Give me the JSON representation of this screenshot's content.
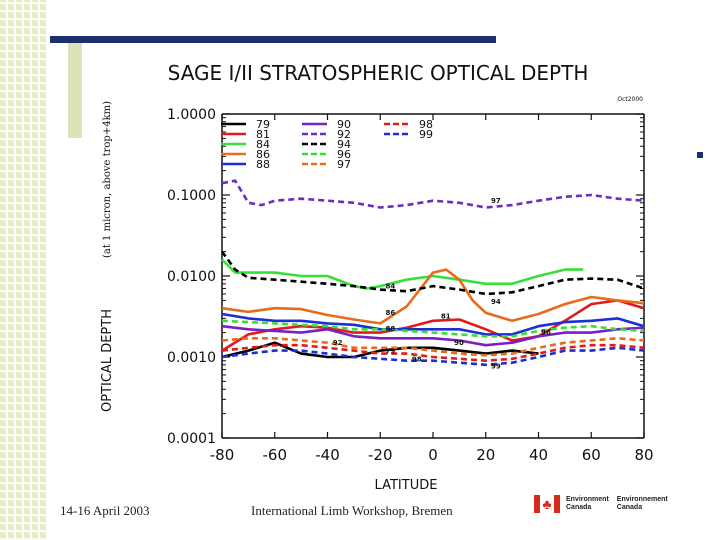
{
  "footer": {
    "date": "14-16 April 2003",
    "event": "International Limb Workshop, Bremen",
    "logo_lines": [
      "Environment",
      "Environnement",
      "Canada",
      "Canada"
    ]
  },
  "chart_data": {
    "type": "line",
    "title": "SAGE I/II STRATOSPHERIC OPTICAL DEPTH",
    "stamp": "Oct2000",
    "xlabel": "LATITUDE",
    "ylabel_main": "OPTICAL DEPTH",
    "ylabel_sub": "(at 1 micron, above trop+4km)",
    "xlim": [
      -80,
      80
    ],
    "ylim": [
      0.0001,
      1.0
    ],
    "yscale": "log",
    "xticks": [
      "-80",
      "-60",
      "-40",
      "-20",
      "0",
      "20",
      "40",
      "60",
      "80"
    ],
    "yticks": [
      "1.0000",
      "0.1000",
      "0.0100",
      "0.0010",
      "0.0001"
    ],
    "legend_position": "top-left",
    "series": [
      {
        "name": "79",
        "color": "#000000",
        "dash": "solid",
        "x": [
          -80,
          -70,
          -60,
          -50,
          -40,
          -30,
          -20,
          -10,
          0,
          10,
          20,
          30,
          40
        ],
        "y": [
          0.001,
          0.0012,
          0.0015,
          0.0011,
          0.001,
          0.001,
          0.0012,
          0.0013,
          0.0013,
          0.0012,
          0.0011,
          0.0012,
          0.0011
        ]
      },
      {
        "name": "81",
        "color": "#e01b1b",
        "dash": "solid",
        "x": [
          -80,
          -70,
          -60,
          -50,
          -40,
          -30,
          -20,
          -10,
          0,
          10,
          20,
          30,
          40,
          50,
          60,
          70,
          80
        ],
        "y": [
          0.0012,
          0.0019,
          0.0022,
          0.0024,
          0.0023,
          0.002,
          0.002,
          0.0023,
          0.0028,
          0.0029,
          0.0022,
          0.0016,
          0.0018,
          0.0028,
          0.0045,
          0.005,
          0.004
        ]
      },
      {
        "name": "84",
        "color": "#36e036",
        "dash": "solid",
        "x": [
          -80,
          -75,
          -70,
          -60,
          -50,
          -40,
          -30,
          -25,
          -20,
          -10,
          0,
          10,
          20,
          30,
          40,
          50,
          57
        ],
        "y": [
          0.016,
          0.011,
          0.011,
          0.011,
          0.01,
          0.01,
          0.0075,
          0.007,
          0.0075,
          0.009,
          0.01,
          0.009,
          0.008,
          0.008,
          0.01,
          0.012,
          0.012
        ]
      },
      {
        "name": "86",
        "color": "#e86a1a",
        "dash": "solid",
        "x": [
          -80,
          -70,
          -60,
          -50,
          -40,
          -30,
          -20,
          -10,
          0,
          5,
          10,
          15,
          20,
          30,
          40,
          50,
          60,
          70,
          80
        ],
        "y": [
          0.004,
          0.0036,
          0.004,
          0.0039,
          0.0033,
          0.0029,
          0.0026,
          0.0042,
          0.011,
          0.012,
          0.009,
          0.005,
          0.0035,
          0.0028,
          0.0034,
          0.0045,
          0.0055,
          0.005,
          0.0046
        ]
      },
      {
        "name": "88",
        "color": "#1c2fd6",
        "dash": "solid",
        "x": [
          -80,
          -70,
          -60,
          -50,
          -40,
          -30,
          -20,
          -10,
          0,
          10,
          20,
          30,
          40,
          50,
          60,
          70,
          80
        ],
        "y": [
          0.0034,
          0.003,
          0.0028,
          0.0028,
          0.0026,
          0.0025,
          0.0022,
          0.0022,
          0.0022,
          0.0022,
          0.0019,
          0.0019,
          0.0024,
          0.0027,
          0.0028,
          0.003,
          0.0024
        ]
      },
      {
        "name": "90",
        "color": "#7a1fc4",
        "dash": "solid",
        "x": [
          -80,
          -70,
          -60,
          -50,
          -40,
          -30,
          -20,
          -10,
          0,
          10,
          20,
          30,
          40,
          50,
          60,
          70,
          80
        ],
        "y": [
          0.0024,
          0.0022,
          0.0021,
          0.002,
          0.0022,
          0.0018,
          0.0017,
          0.0017,
          0.0017,
          0.0016,
          0.0014,
          0.0015,
          0.0018,
          0.002,
          0.002,
          0.0022,
          0.0023
        ]
      },
      {
        "name": "92",
        "color": "#6a2fc0",
        "dash": "dash",
        "x": [
          -80,
          -75,
          -70,
          -65,
          -60,
          -50,
          -40,
          -30,
          -20,
          -10,
          0,
          10,
          20,
          30,
          40,
          50,
          60,
          70,
          80
        ],
        "y": [
          0.14,
          0.15,
          0.08,
          0.075,
          0.085,
          0.09,
          0.085,
          0.08,
          0.07,
          0.075,
          0.085,
          0.08,
          0.07,
          0.075,
          0.085,
          0.095,
          0.1,
          0.09,
          0.085
        ]
      },
      {
        "name": "94",
        "color": "#000000",
        "dash": "dash",
        "x": [
          -80,
          -75,
          -70,
          -60,
          -50,
          -40,
          -30,
          -20,
          -10,
          0,
          10,
          20,
          30,
          40,
          50,
          60,
          70,
          80
        ],
        "y": [
          0.02,
          0.012,
          0.0095,
          0.009,
          0.0085,
          0.008,
          0.0075,
          0.0068,
          0.0065,
          0.0075,
          0.0068,
          0.006,
          0.0063,
          0.0075,
          0.009,
          0.0093,
          0.009,
          0.007
        ]
      },
      {
        "name": "96",
        "color": "#36e036",
        "dash": "dash",
        "x": [
          -80,
          -70,
          -60,
          -50,
          -40,
          -30,
          -20,
          -10,
          0,
          10,
          20,
          30,
          40,
          50,
          60,
          70,
          80
        ],
        "y": [
          0.0028,
          0.0027,
          0.0026,
          0.0025,
          0.0024,
          0.0022,
          0.0022,
          0.0021,
          0.002,
          0.0019,
          0.0018,
          0.0018,
          0.0021,
          0.0023,
          0.0024,
          0.0022,
          0.0021
        ]
      },
      {
        "name": "97",
        "color": "#e86a1a",
        "dash": "dash",
        "x": [
          -80,
          -70,
          -60,
          -50,
          -40,
          -30,
          -20,
          -10,
          0,
          10,
          20,
          30,
          40,
          50,
          60,
          70,
          80
        ],
        "y": [
          0.0016,
          0.0017,
          0.0017,
          0.0016,
          0.0015,
          0.0013,
          0.0013,
          0.0013,
          0.0012,
          0.0011,
          0.00105,
          0.0011,
          0.0013,
          0.0015,
          0.0016,
          0.0017,
          0.0016
        ]
      },
      {
        "name": "98",
        "color": "#e01b1b",
        "dash": "dash",
        "x": [
          -80,
          -70,
          -60,
          -50,
          -40,
          -30,
          -20,
          -10,
          0,
          10,
          20,
          30,
          40,
          50,
          60,
          70,
          80
        ],
        "y": [
          0.0012,
          0.0013,
          0.0014,
          0.0014,
          0.0013,
          0.0012,
          0.0011,
          0.0011,
          0.001,
          0.00095,
          0.0009,
          0.00095,
          0.0011,
          0.0013,
          0.0014,
          0.0014,
          0.0013
        ]
      },
      {
        "name": "99",
        "color": "#1c2fd6",
        "dash": "dash",
        "x": [
          -80,
          -70,
          -60,
          -50,
          -40,
          -30,
          -20,
          -10,
          0,
          10,
          20,
          30,
          40,
          50,
          60,
          70,
          80
        ],
        "y": [
          0.001,
          0.0011,
          0.0012,
          0.0012,
          0.0011,
          0.001,
          0.00095,
          0.0009,
          0.0009,
          0.00085,
          0.0008,
          0.00085,
          0.001,
          0.0012,
          0.0012,
          0.0013,
          0.0012
        ]
      }
    ],
    "annotations": [
      {
        "text": "97",
        "x": 22,
        "y": 0.08
      },
      {
        "text": "84",
        "x": -18,
        "y": 0.007
      },
      {
        "text": "94",
        "x": 22,
        "y": 0.0045
      },
      {
        "text": "86",
        "x": -18,
        "y": 0.0033
      },
      {
        "text": "81",
        "x": 3,
        "y": 0.003
      },
      {
        "text": "88",
        "x": -18,
        "y": 0.0021
      },
      {
        "text": "92",
        "x": -38,
        "y": 0.0014
      },
      {
        "text": "90",
        "x": 8,
        "y": 0.0014
      },
      {
        "text": "96",
        "x": 41,
        "y": 0.0019
      },
      {
        "text": "79",
        "x": -18,
        "y": 0.0011
      },
      {
        "text": "98",
        "x": -8,
        "y": 0.00088
      },
      {
        "text": "99",
        "x": 22,
        "y": 0.00072
      }
    ]
  }
}
